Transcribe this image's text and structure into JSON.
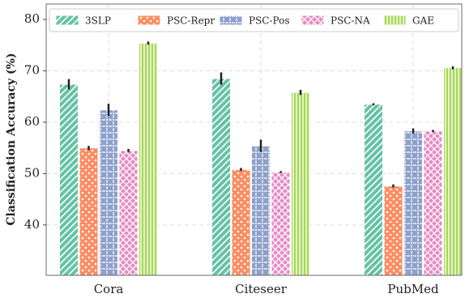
{
  "chart_data": {
    "type": "bar",
    "ylabel": "Classification Accuracy (%)",
    "categories": [
      "Cora",
      "Citeseer",
      "PubMed"
    ],
    "series": [
      {
        "name": "3SLP",
        "color": "#66c2a5",
        "hatch": "//",
        "values": [
          67.4,
          68.5,
          63.5
        ],
        "errors": [
          1.0,
          1.2,
          0.2
        ]
      },
      {
        "name": "PSC-Repr",
        "color": "#fc8d62",
        "hatch": "..",
        "values": [
          55.0,
          50.8,
          47.6
        ],
        "errors": [
          0.4,
          0.3,
          0.3
        ]
      },
      {
        "name": "PSC-Pos",
        "color": "#8da0cb",
        "hatch": "++",
        "values": [
          62.4,
          55.4,
          58.3
        ],
        "errors": [
          1.2,
          1.2,
          0.5
        ]
      },
      {
        "name": "PSC-NA",
        "color": "#e78ac3",
        "hatch": "xx",
        "values": [
          54.5,
          50.3,
          58.3
        ],
        "errors": [
          0.3,
          0.2,
          0.2
        ]
      },
      {
        "name": "GAE",
        "color": "#a6d854",
        "hatch": "||",
        "values": [
          75.4,
          65.8,
          70.6
        ],
        "errors": [
          0.3,
          0.5,
          0.3
        ]
      }
    ],
    "ylim": [
      30.2,
      83.0
    ],
    "yticks": [
      40,
      50,
      60,
      70,
      80
    ],
    "grid": true,
    "legend": "upper center"
  }
}
